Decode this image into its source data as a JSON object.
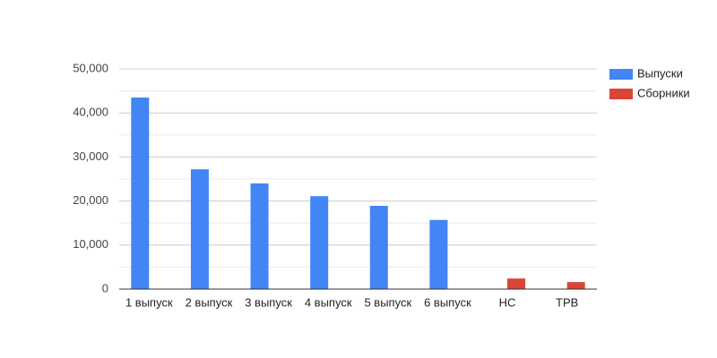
{
  "chart_data": {
    "type": "bar",
    "categories": [
      "1 выпуск",
      "2 выпуск",
      "3 выпуск",
      "4 выпуск",
      "5 выпуск",
      "6 выпуск",
      "НС",
      "ТРВ"
    ],
    "series": [
      {
        "name": "Выпуски",
        "color": "#4285f4",
        "values": [
          43500,
          27200,
          24000,
          21100,
          18900,
          15700,
          null,
          null
        ]
      },
      {
        "name": "Сборники",
        "color": "#db4437",
        "values": [
          null,
          null,
          null,
          null,
          null,
          null,
          2400,
          1600
        ]
      }
    ],
    "ylim": [
      0,
      50000
    ],
    "yticks": [
      0,
      {
        "value": 10000,
        "label": "10,000"
      },
      {
        "value": 20000,
        "label": "20,000"
      },
      {
        "value": 30000,
        "label": "30,000"
      },
      {
        "value": 40000,
        "label": "40,000"
      },
      {
        "value": 50000,
        "label": "50,000"
      }
    ],
    "y_minor_ticks": [
      5000,
      15000,
      25000,
      35000,
      45000
    ],
    "grid": true,
    "legend": "right"
  }
}
